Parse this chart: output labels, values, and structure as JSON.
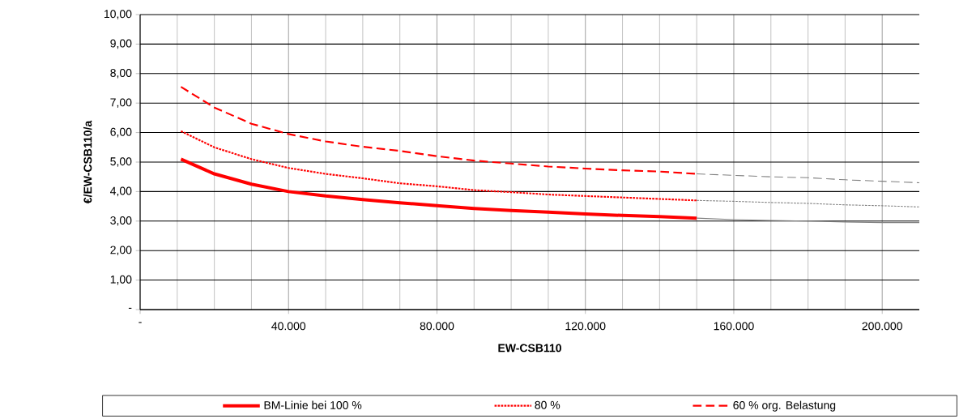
{
  "chart_data": {
    "type": "line",
    "xlabel": "EW-CSB110",
    "ylabel": "€/EW-CSB110/a",
    "xlim": [
      0,
      210000
    ],
    "ylim": [
      0,
      10
    ],
    "xticks": [
      {
        "value": 0,
        "label": "-"
      },
      {
        "value": 40000,
        "label": "40.000"
      },
      {
        "value": 80000,
        "label": "80.000"
      },
      {
        "value": 120000,
        "label": "120.000"
      },
      {
        "value": 160000,
        "label": "160.000"
      },
      {
        "value": 200000,
        "label": "200.000"
      }
    ],
    "yticks": [
      {
        "value": 0,
        "label": "-"
      },
      {
        "value": 1,
        "label": "1,00"
      },
      {
        "value": 2,
        "label": "2,00"
      },
      {
        "value": 3,
        "label": "3,00"
      },
      {
        "value": 4,
        "label": "4,00"
      },
      {
        "value": 5,
        "label": "5,00"
      },
      {
        "value": 6,
        "label": "6,00"
      },
      {
        "value": 7,
        "label": "7,00"
      },
      {
        "value": 8,
        "label": "8,00"
      },
      {
        "value": 9,
        "label": "9,00"
      },
      {
        "value": 10,
        "label": "10,00"
      }
    ],
    "grid": true,
    "legend": "bottom",
    "marker": "none",
    "series": [
      {
        "name": "BM-Linie bei 100 %",
        "color": "#ff0000",
        "line_style": "solid",
        "x": [
          11000,
          20000,
          30000,
          40000,
          50000,
          60000,
          70000,
          80000,
          90000,
          100000,
          110000,
          120000,
          130000,
          140000,
          150000
        ],
        "values": [
          5.1,
          4.6,
          4.25,
          4.0,
          3.85,
          3.73,
          3.62,
          3.52,
          3.43,
          3.36,
          3.3,
          3.24,
          3.19,
          3.15,
          3.1
        ]
      },
      {
        "name": "80 %",
        "color": "#ff0000",
        "line_style": "dotted",
        "x": [
          11000,
          20000,
          30000,
          40000,
          50000,
          60000,
          70000,
          80000,
          90000,
          100000,
          110000,
          120000,
          130000,
          140000,
          150000
        ],
        "values": [
          6.05,
          5.5,
          5.1,
          4.8,
          4.6,
          4.45,
          4.28,
          4.18,
          4.05,
          3.98,
          3.9,
          3.85,
          3.8,
          3.75,
          3.7
        ]
      },
      {
        "name": "60 % org. Belastung",
        "color": "#ff0000",
        "line_style": "dashed",
        "x": [
          11000,
          20000,
          30000,
          40000,
          50000,
          60000,
          70000,
          80000,
          90000,
          100000,
          110000,
          120000,
          130000,
          140000,
          150000
        ],
        "values": [
          7.55,
          6.85,
          6.3,
          5.95,
          5.7,
          5.52,
          5.38,
          5.2,
          5.05,
          4.95,
          4.85,
          4.78,
          4.72,
          4.68,
          4.6
        ]
      },
      {
        "color": "#808080",
        "line_style": "solid",
        "x": [
          150000,
          160000,
          170000,
          180000,
          190000,
          200000,
          210000
        ],
        "values": [
          3.1,
          3.05,
          3.02,
          3.0,
          2.97,
          2.95,
          2.95
        ]
      },
      {
        "color": "#808080",
        "line_style": "dotted",
        "x": [
          150000,
          160000,
          170000,
          180000,
          190000,
          200000,
          210000
        ],
        "values": [
          3.7,
          3.67,
          3.63,
          3.6,
          3.55,
          3.52,
          3.48
        ]
      },
      {
        "color": "#808080",
        "line_style": "dashed",
        "x": [
          150000,
          160000,
          170000,
          180000,
          190000,
          200000,
          210000
        ],
        "values": [
          4.6,
          4.55,
          4.5,
          4.47,
          4.4,
          4.35,
          4.3
        ]
      }
    ]
  }
}
